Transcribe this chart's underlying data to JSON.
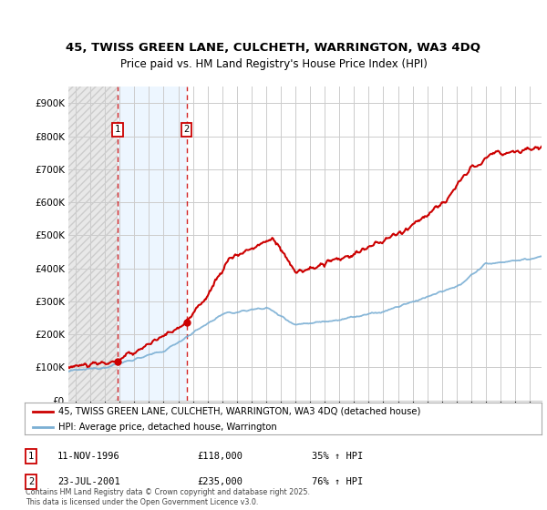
{
  "title_line1": "45, TWISS GREEN LANE, CULCHETH, WARRINGTON, WA3 4DQ",
  "title_line2": "Price paid vs. HM Land Registry's House Price Index (HPI)",
  "ylim": [
    0,
    950000
  ],
  "yticks": [
    0,
    100000,
    200000,
    300000,
    400000,
    500000,
    600000,
    700000,
    800000,
    900000
  ],
  "ytick_labels": [
    "£0",
    "£100K",
    "£200K",
    "£300K",
    "£400K",
    "£500K",
    "£600K",
    "£700K",
    "£800K",
    "£900K"
  ],
  "sale1_date": 1996.87,
  "sale1_price": 118000,
  "sale2_date": 2001.56,
  "sale2_price": 235000,
  "sale1_date_str": "11-NOV-1996",
  "sale1_price_str": "£118,000",
  "sale1_hpi_str": "35% ↑ HPI",
  "sale2_date_str": "23-JUL-2001",
  "sale2_price_str": "£235,000",
  "sale2_hpi_str": "76% ↑ HPI",
  "line1_color": "#cc0000",
  "line2_color": "#7bafd4",
  "grid_color": "#cccccc",
  "bg_color": "#ffffff",
  "legend1_label": "45, TWISS GREEN LANE, CULCHETH, WARRINGTON, WA3 4DQ (detached house)",
  "legend2_label": "HPI: Average price, detached house, Warrington",
  "footer": "Contains HM Land Registry data © Crown copyright and database right 2025.\nThis data is licensed under the Open Government Licence v3.0.",
  "xmin": 1993.5,
  "xmax": 2025.8
}
